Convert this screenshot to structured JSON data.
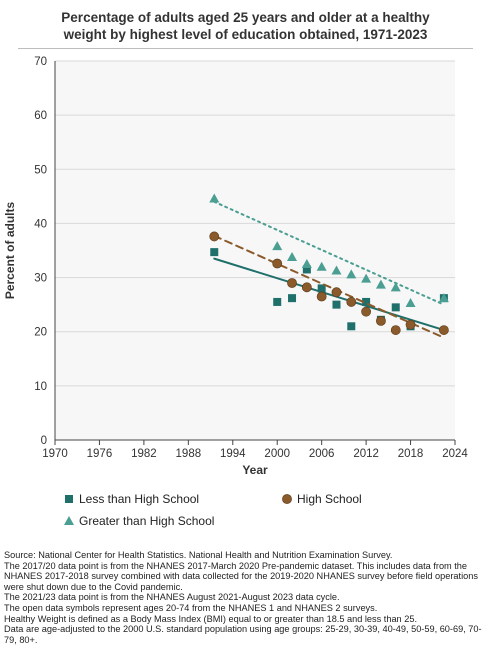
{
  "title_line1": "Percentage of adults aged 25 years and older at a healthy",
  "title_line2": "weight by highest level of education obtained, 1971-2023",
  "chart_data": {
    "type": "scatter",
    "xlabel": "Year",
    "ylabel": "Percent of adults",
    "xlim": [
      1970,
      2024
    ],
    "ylim": [
      0,
      70
    ],
    "xticks": [
      1970,
      1976,
      1982,
      1988,
      1994,
      2000,
      2006,
      2012,
      2018,
      2024
    ],
    "yticks": [
      0,
      10,
      20,
      30,
      40,
      50,
      60,
      70
    ],
    "grid": true,
    "legend_position": "bottom",
    "series": [
      {
        "name": "Less than High School",
        "color": "#1f6f6b",
        "marker": "square",
        "points": [
          [
            1991.5,
            34.7
          ],
          [
            2000,
            25.5
          ],
          [
            2002,
            26.2
          ],
          [
            2004,
            31.5
          ],
          [
            2006,
            28.0
          ],
          [
            2008,
            25.0
          ],
          [
            2010,
            21.0
          ],
          [
            2012,
            25.5
          ],
          [
            2014,
            22.2
          ],
          [
            2016,
            24.5
          ],
          [
            2018,
            21.0
          ],
          [
            2022.5,
            26.2
          ]
        ],
        "trend": {
          "style": "solid",
          "from": [
            1991.5,
            33.5
          ],
          "to": [
            2022.5,
            20.3
          ]
        }
      },
      {
        "name": "High School",
        "color": "#8b5a2b",
        "marker": "circle",
        "points": [
          [
            1991.5,
            37.6
          ],
          [
            2000,
            32.6
          ],
          [
            2002,
            29.0
          ],
          [
            2004,
            28.2
          ],
          [
            2006,
            26.5
          ],
          [
            2008,
            27.3
          ],
          [
            2010,
            25.5
          ],
          [
            2012,
            23.7
          ],
          [
            2014,
            22.0
          ],
          [
            2016,
            20.3
          ],
          [
            2018,
            21.3
          ],
          [
            2022.5,
            20.3
          ]
        ],
        "trend": {
          "style": "dashed",
          "from": [
            1991.5,
            37.7
          ],
          "to": [
            2022.5,
            18.9
          ]
        }
      },
      {
        "name": "Greater than High School",
        "color": "#4a9e92",
        "marker": "triangle",
        "points": [
          [
            1991.5,
            44.6
          ],
          [
            2000,
            35.8
          ],
          [
            2002,
            33.8
          ],
          [
            2004,
            32.5
          ],
          [
            2006,
            32.0
          ],
          [
            2008,
            31.3
          ],
          [
            2010,
            30.6
          ],
          [
            2012,
            29.8
          ],
          [
            2014,
            28.7
          ],
          [
            2016,
            28.2
          ],
          [
            2018,
            25.3
          ],
          [
            2022.5,
            26.2
          ]
        ],
        "trend": {
          "style": "dotted",
          "from": [
            1991.5,
            44.0
          ],
          "to": [
            2022.5,
            25.0
          ]
        }
      }
    ]
  },
  "source_lines": [
    "Source: National Center for Health Statistics. National Health and Nutrition Examination Survey.",
    "The 2017/20 data point is from the NHANES 2017-March 2020 Pre-pandemic dataset. This includes data from the NHANES 2017-2018 survey combined with data collected for the 2019-2020 NHANES survey before field operations were shut down due to the Covid pandemic.",
    "The 2021/23 data point is from the NHANES August 2021-August 2023 data cycle.",
    "The open data symbols represent ages 20-74 from the NHANES 1 and NHANES 2 surveys.",
    "Healthy Weight is defined as a Body Mass Index (BMI) equal to or greater than 18.5 and less than 25.",
    "Data are age-adjusted to the 2000 U.S. standard population using age groups: 25-29, 30-39, 40-49, 50-59, 60-69, 70-79, 80+."
  ]
}
